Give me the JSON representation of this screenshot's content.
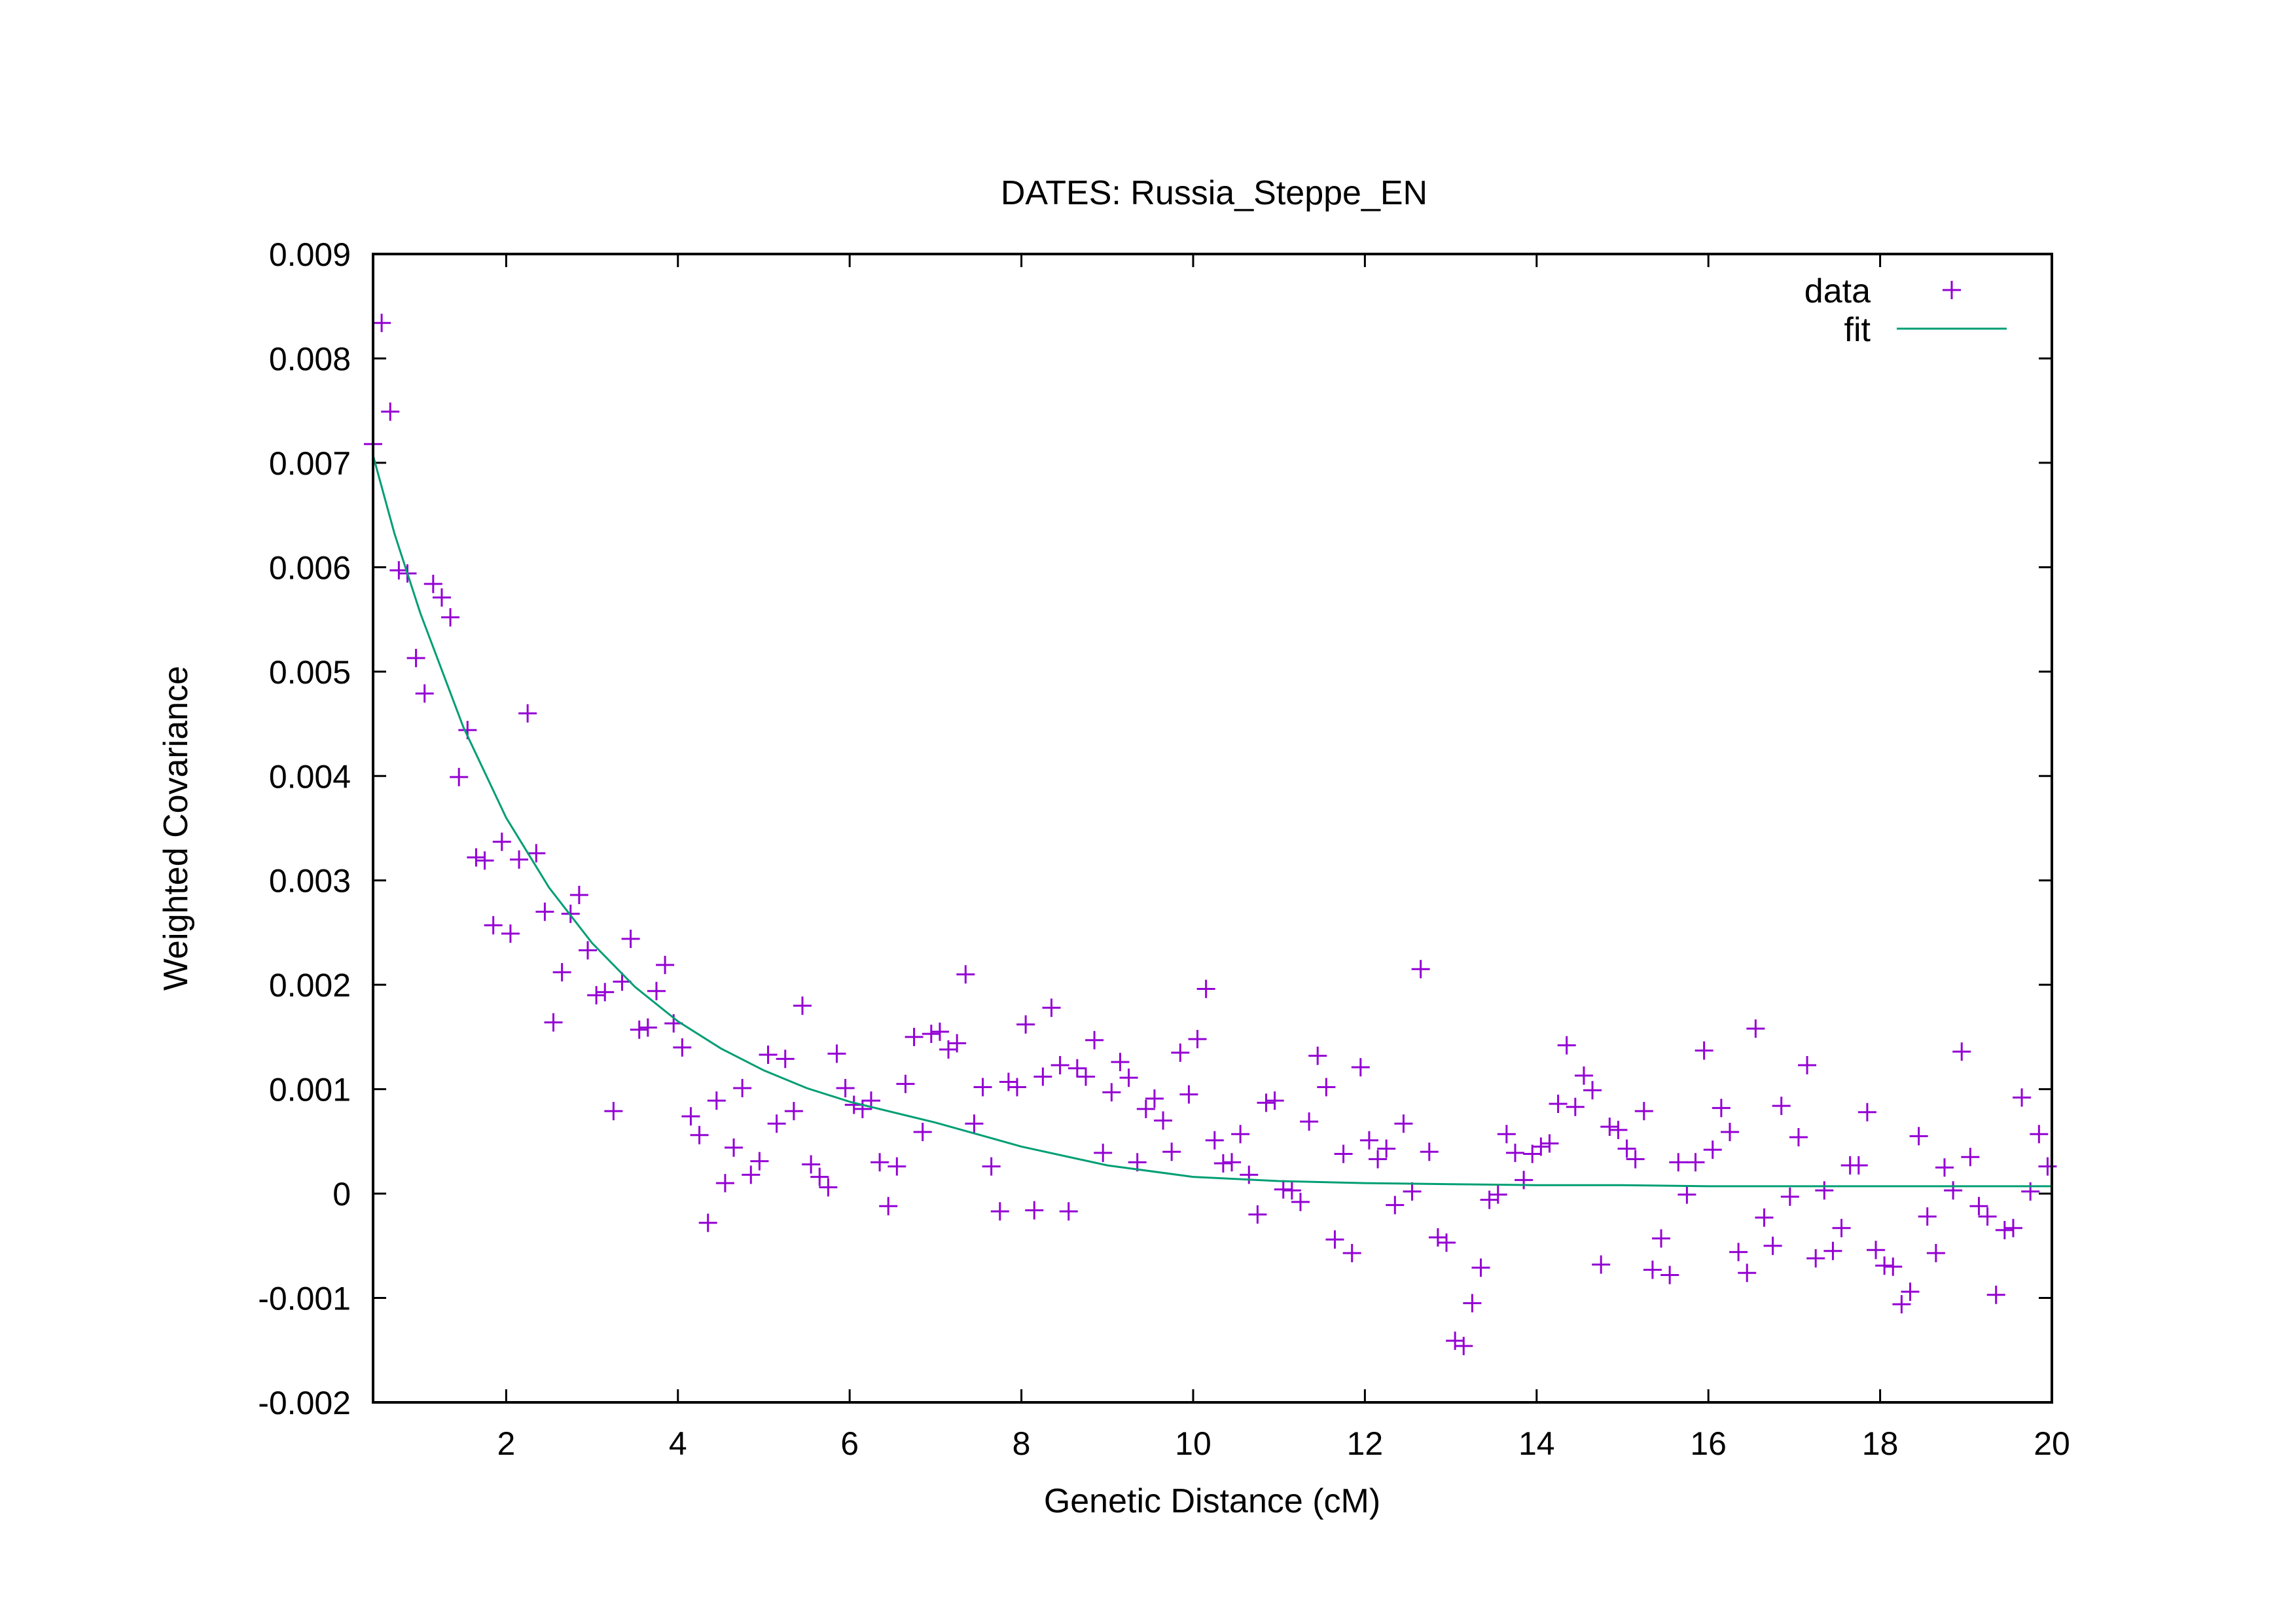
{
  "chart_data": {
    "type": "scatter",
    "title": "DATES: Russia_Steppe_EN",
    "xlabel": "Genetic Distance (cM)",
    "ylabel": "Weighted Covariance",
    "xlim": [
      0.45,
      20
    ],
    "ylim": [
      -0.002,
      0.009
    ],
    "xticks": [
      2,
      4,
      6,
      8,
      10,
      12,
      14,
      16,
      18,
      20
    ],
    "xtick_labels": [
      "2",
      "4",
      "6",
      "8",
      "10",
      "12",
      "14",
      "16",
      "18",
      "20"
    ],
    "yticks": [
      -0.002,
      -0.001,
      0,
      0.001,
      0.002,
      0.003,
      0.004,
      0.005,
      0.006,
      0.007,
      0.008,
      0.009
    ],
    "ytick_labels": [
      "-0.002",
      "-0.001",
      "0",
      "0.001",
      "0.002",
      "0.003",
      "0.004",
      "0.005",
      "0.006",
      "0.007",
      "0.008",
      "0.009"
    ],
    "grid": false,
    "legend_position": "top-right",
    "colors": {
      "data": "#9400d3",
      "fit": "#009e73",
      "axes": "#000000"
    },
    "series": [
      {
        "name": "data",
        "kind": "points",
        "marker": "plus",
        "points": [
          [
            0.45,
            0.00718
          ],
          [
            0.55,
            0.00834
          ],
          [
            0.65,
            0.00749
          ],
          [
            0.75,
            0.00597
          ],
          [
            0.85,
            0.00594
          ],
          [
            0.95,
            0.00513
          ],
          [
            1.05,
            0.00479
          ],
          [
            1.15,
            0.00584
          ],
          [
            1.25,
            0.00571
          ],
          [
            1.35,
            0.00552
          ],
          [
            1.45,
            0.00399
          ],
          [
            1.55,
            0.00444
          ],
          [
            1.65,
            0.00322
          ],
          [
            1.75,
            0.00319
          ],
          [
            1.85,
            0.00257
          ],
          [
            1.95,
            0.00337
          ],
          [
            2.05,
            0.00249
          ],
          [
            2.15,
            0.0032
          ],
          [
            2.25,
            0.0046
          ],
          [
            2.35,
            0.00326
          ],
          [
            2.45,
            0.0027
          ],
          [
            2.55,
            0.00164
          ],
          [
            2.65,
            0.00212
          ],
          [
            2.75,
            0.00268
          ],
          [
            2.85,
            0.00286
          ],
          [
            2.95,
            0.00233
          ],
          [
            3.05,
            0.0019
          ],
          [
            3.15,
            0.00193
          ],
          [
            3.25,
            0.00079
          ],
          [
            3.35,
            0.00203
          ],
          [
            3.45,
            0.00244
          ],
          [
            3.55,
            0.00157
          ],
          [
            3.65,
            0.00159
          ],
          [
            3.75,
            0.00194
          ],
          [
            3.85,
            0.00219
          ],
          [
            3.95,
            0.00163
          ],
          [
            4.05,
            0.0014
          ],
          [
            4.15,
            0.00074
          ],
          [
            4.25,
            0.00056
          ],
          [
            4.35,
            -0.00028
          ],
          [
            4.45,
            0.00089
          ],
          [
            4.55,
            0.0001
          ],
          [
            4.65,
            0.00044
          ],
          [
            4.75,
            0.00101
          ],
          [
            4.85,
            0.00018
          ],
          [
            4.95,
            0.00031
          ],
          [
            5.05,
            0.00133
          ],
          [
            5.15,
            0.00067
          ],
          [
            5.25,
            0.00129
          ],
          [
            5.35,
            0.00079
          ],
          [
            5.45,
            0.0018
          ],
          [
            5.55,
            0.00028
          ],
          [
            5.65,
            0.00016
          ],
          [
            5.75,
            6e-05
          ],
          [
            5.85,
            0.00134
          ],
          [
            5.95,
            0.00101
          ],
          [
            6.05,
            0.00085
          ],
          [
            6.15,
            0.00081
          ],
          [
            6.25,
            0.00089
          ],
          [
            6.35,
            0.0003
          ],
          [
            6.45,
            -0.00012
          ],
          [
            6.55,
            0.00026
          ],
          [
            6.65,
            0.00105
          ],
          [
            6.75,
            0.0015
          ],
          [
            6.85,
            0.00059
          ],
          [
            6.95,
            0.00153
          ],
          [
            7.05,
            0.00155
          ],
          [
            7.15,
            0.00138
          ],
          [
            7.25,
            0.00144
          ],
          [
            7.35,
            0.0021
          ],
          [
            7.45,
            0.00067
          ],
          [
            7.55,
            0.00102
          ],
          [
            7.65,
            0.00026
          ],
          [
            7.75,
            -0.00017
          ],
          [
            7.85,
            0.00107
          ],
          [
            7.95,
            0.00102
          ],
          [
            8.05,
            0.00162
          ],
          [
            8.15,
            -0.00016
          ],
          [
            8.25,
            0.00112
          ],
          [
            8.35,
            0.00178
          ],
          [
            8.45,
            0.00123
          ],
          [
            8.55,
            -0.00017
          ],
          [
            8.65,
            0.0012
          ],
          [
            8.75,
            0.00112
          ],
          [
            8.85,
            0.00147
          ],
          [
            8.95,
            0.00039
          ],
          [
            9.05,
            0.00097
          ],
          [
            9.15,
            0.00126
          ],
          [
            9.25,
            0.00111
          ],
          [
            9.35,
            0.0003
          ],
          [
            9.45,
            0.00081
          ],
          [
            9.55,
            0.00091
          ],
          [
            9.65,
            0.0007
          ],
          [
            9.75,
            0.0004
          ],
          [
            9.85,
            0.00135
          ],
          [
            9.95,
            0.00095
          ],
          [
            10.05,
            0.00148
          ],
          [
            10.15,
            0.00196
          ],
          [
            10.25,
            0.00051
          ],
          [
            10.35,
            0.00029
          ],
          [
            10.45,
            0.0003
          ],
          [
            10.55,
            0.00057
          ],
          [
            10.65,
            0.00018
          ],
          [
            10.75,
            -0.0002
          ],
          [
            10.85,
            0.00087
          ],
          [
            10.95,
            0.00089
          ],
          [
            11.05,
            4e-05
          ],
          [
            11.15,
            3e-05
          ],
          [
            11.25,
            -8e-05
          ],
          [
            11.35,
            0.00069
          ],
          [
            11.45,
            0.00132
          ],
          [
            11.55,
            0.00102
          ],
          [
            11.65,
            -0.00044
          ],
          [
            11.75,
            0.00038
          ],
          [
            11.85,
            -0.00057
          ],
          [
            11.95,
            0.00121
          ],
          [
            12.05,
            0.00051
          ],
          [
            12.15,
            0.00033
          ],
          [
            12.25,
            0.00043
          ],
          [
            12.35,
            -0.00011
          ],
          [
            12.45,
            0.00067
          ],
          [
            12.55,
            2e-05
          ],
          [
            12.65,
            0.00215
          ],
          [
            12.75,
            0.0004
          ],
          [
            12.85,
            -0.00042
          ],
          [
            12.95,
            -0.00047
          ],
          [
            13.05,
            -0.00141
          ],
          [
            13.15,
            -0.00146
          ],
          [
            13.25,
            -0.00105
          ],
          [
            13.35,
            -0.00071
          ],
          [
            13.45,
            -6e-05
          ],
          [
            13.55,
            -1e-05
          ],
          [
            13.65,
            0.00057
          ],
          [
            13.75,
            0.00039
          ],
          [
            13.85,
            0.00013
          ],
          [
            13.95,
            0.00038
          ],
          [
            14.05,
            0.00045
          ],
          [
            14.15,
            0.00048
          ],
          [
            14.25,
            0.00086
          ],
          [
            14.35,
            0.00142
          ],
          [
            14.45,
            0.00083
          ],
          [
            14.55,
            0.00113
          ],
          [
            14.65,
            0.00099
          ],
          [
            14.75,
            -0.00068
          ],
          [
            14.85,
            0.00064
          ],
          [
            14.95,
            0.00061
          ],
          [
            15.05,
            0.00043
          ],
          [
            15.15,
            0.00033
          ],
          [
            15.25,
            0.00079
          ],
          [
            15.35,
            -0.00073
          ],
          [
            15.45,
            -0.00043
          ],
          [
            15.55,
            -0.00078
          ],
          [
            15.65,
            0.0003
          ],
          [
            15.75,
            -1e-05
          ],
          [
            15.85,
            0.0003
          ],
          [
            15.95,
            0.00137
          ],
          [
            16.05,
            0.00042
          ],
          [
            16.15,
            0.00082
          ],
          [
            16.25,
            0.00059
          ],
          [
            16.35,
            -0.00056
          ],
          [
            16.45,
            -0.00076
          ],
          [
            16.55,
            0.00158
          ],
          [
            16.65,
            -0.00023
          ],
          [
            16.75,
            -0.0005
          ],
          [
            16.85,
            0.00084
          ],
          [
            16.95,
            -3e-05
          ],
          [
            17.05,
            0.00054
          ],
          [
            17.15,
            0.00123
          ],
          [
            17.25,
            -0.00062
          ],
          [
            17.35,
            3e-05
          ],
          [
            17.45,
            -0.00055
          ],
          [
            17.55,
            -0.00033
          ],
          [
            17.65,
            0.00027
          ],
          [
            17.75,
            0.00027
          ],
          [
            17.85,
            0.00078
          ],
          [
            17.95,
            -0.00054
          ],
          [
            18.05,
            -0.00069
          ],
          [
            18.15,
            -0.0007
          ],
          [
            18.25,
            -0.00106
          ],
          [
            18.35,
            -0.00094
          ],
          [
            18.45,
            0.00055
          ],
          [
            18.55,
            -0.00022
          ],
          [
            18.65,
            -0.00057
          ],
          [
            18.75,
            0.00025
          ],
          [
            18.85,
            3e-05
          ],
          [
            18.95,
            0.00136
          ],
          [
            19.05,
            0.00035
          ],
          [
            19.15,
            -0.00012
          ],
          [
            19.25,
            -0.00022
          ],
          [
            19.35,
            -0.00097
          ],
          [
            19.45,
            -0.00035
          ],
          [
            19.55,
            -0.00033
          ],
          [
            19.65,
            0.00092
          ],
          [
            19.75,
            2e-05
          ],
          [
            19.85,
            0.00057
          ],
          [
            19.95,
            0.00026
          ]
        ]
      },
      {
        "name": "fit",
        "kind": "line",
        "x": [
          0.45,
          0.7,
          1,
          1.5,
          2,
          2.5,
          3,
          3.5,
          4,
          4.5,
          5,
          5.5,
          6,
          7,
          8,
          9,
          10,
          11,
          12,
          13,
          14,
          15,
          16,
          17,
          18,
          19,
          20
        ],
        "y": [
          0.00707,
          0.00632,
          0.00556,
          0.00447,
          0.0036,
          0.00293,
          0.0024,
          0.00198,
          0.00165,
          0.00139,
          0.00118,
          0.00101,
          0.00088,
          0.00068,
          0.00045,
          0.00027,
          0.00016,
          0.00012,
          0.0001,
          9e-05,
          8e-05,
          8e-05,
          7e-05,
          7e-05,
          7e-05,
          7e-05,
          7e-05
        ]
      }
    ]
  }
}
